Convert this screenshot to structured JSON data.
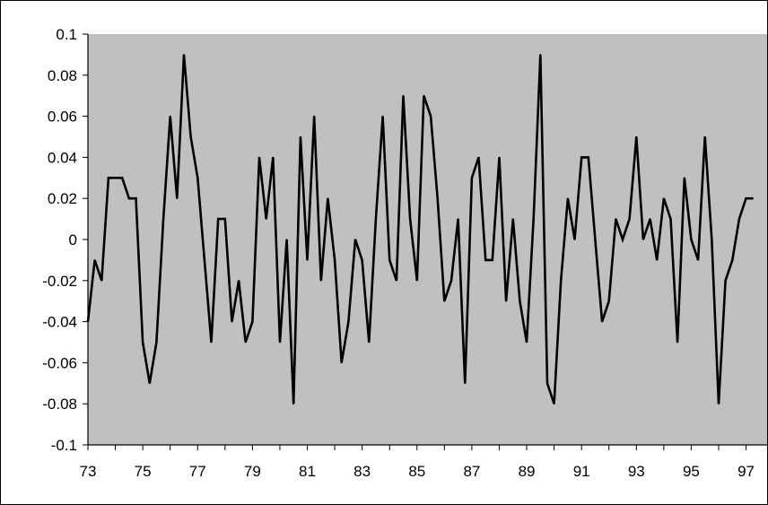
{
  "chart_data": {
    "type": "line",
    "title": "",
    "xlabel": "",
    "ylabel": "",
    "xlim": [
      73,
      97.8
    ],
    "ylim": [
      -0.1,
      0.1
    ],
    "x_ticks": [
      73,
      75,
      77,
      79,
      81,
      83,
      85,
      87,
      89,
      91,
      93,
      95,
      97
    ],
    "x_tick_labels": [
      "73",
      "75",
      "77",
      "79",
      "81",
      "83",
      "85",
      "87",
      "89",
      "91",
      "93",
      "95",
      "97"
    ],
    "y_ticks": [
      -0.1,
      -0.08,
      -0.06,
      -0.04,
      -0.02,
      0,
      0.02,
      0.04,
      0.06,
      0.08,
      0.1
    ],
    "y_tick_labels": [
      "-0.1",
      "-0.08",
      "-0.06",
      "-0.04",
      "-0.02",
      "0",
      "0.02",
      "0.04",
      "0.06",
      "0.08",
      "0.1"
    ],
    "grid": false,
    "plot_background": "#c0c0c0",
    "line_color": "#000000",
    "series": [
      {
        "x": [
          73.0,
          73.25,
          73.5,
          73.75,
          74.0,
          74.25,
          74.5,
          74.75,
          75.0,
          75.25,
          75.5,
          75.75,
          76.0,
          76.25,
          76.5,
          76.75,
          77.0,
          77.25,
          77.5,
          77.75,
          78.0,
          78.25,
          78.5,
          78.75,
          79.0,
          79.25,
          79.5,
          79.75,
          80.0,
          80.25,
          80.5,
          80.75,
          81.0,
          81.25,
          81.5,
          81.75,
          82.0,
          82.25,
          82.5,
          82.75,
          83.0,
          83.25,
          83.5,
          83.75,
          84.0,
          84.25,
          84.5,
          84.75,
          85.0,
          85.25,
          85.5,
          85.75,
          86.0,
          86.25,
          86.5,
          86.75,
          87.0,
          87.25,
          87.5,
          87.75,
          88.0,
          88.25,
          88.5,
          88.75,
          89.0,
          89.25,
          89.5,
          89.75,
          90.0,
          90.25,
          90.5,
          90.75,
          91.0,
          91.25,
          91.5,
          91.75,
          92.0,
          92.25,
          92.5,
          92.75,
          93.0,
          93.25,
          93.5,
          93.75,
          94.0,
          94.25,
          94.5,
          94.75,
          95.0,
          95.25,
          95.5,
          95.75,
          96.0,
          96.25,
          96.5,
          96.75,
          97.0,
          97.25
        ],
        "values": [
          -0.04,
          -0.01,
          -0.02,
          0.03,
          0.03,
          0.03,
          0.02,
          0.02,
          -0.05,
          -0.07,
          -0.05,
          0.01,
          0.06,
          0.02,
          0.09,
          0.05,
          0.03,
          -0.01,
          -0.05,
          0.01,
          0.01,
          -0.04,
          -0.02,
          -0.05,
          -0.04,
          0.04,
          0.01,
          0.04,
          -0.05,
          0.0,
          -0.08,
          0.05,
          -0.01,
          0.06,
          -0.02,
          0.02,
          -0.01,
          -0.06,
          -0.04,
          0.0,
          -0.01,
          -0.05,
          0.01,
          0.06,
          -0.01,
          -0.02,
          0.07,
          0.01,
          -0.02,
          0.07,
          0.06,
          0.02,
          -0.03,
          -0.02,
          0.01,
          -0.07,
          0.03,
          0.04,
          -0.01,
          -0.01,
          0.04,
          -0.03,
          0.01,
          -0.03,
          -0.05,
          0.01,
          0.09,
          -0.07,
          -0.08,
          -0.02,
          0.02,
          0.0,
          0.04,
          0.04,
          0.0,
          -0.04,
          -0.03,
          0.01,
          0.0,
          0.01,
          0.05,
          0.0,
          0.01,
          -0.01,
          0.02,
          0.01,
          -0.05,
          0.03,
          0.0,
          -0.01,
          0.05,
          0.0,
          -0.08,
          -0.02,
          -0.01,
          0.01,
          0.02,
          0.02
        ]
      }
    ]
  }
}
